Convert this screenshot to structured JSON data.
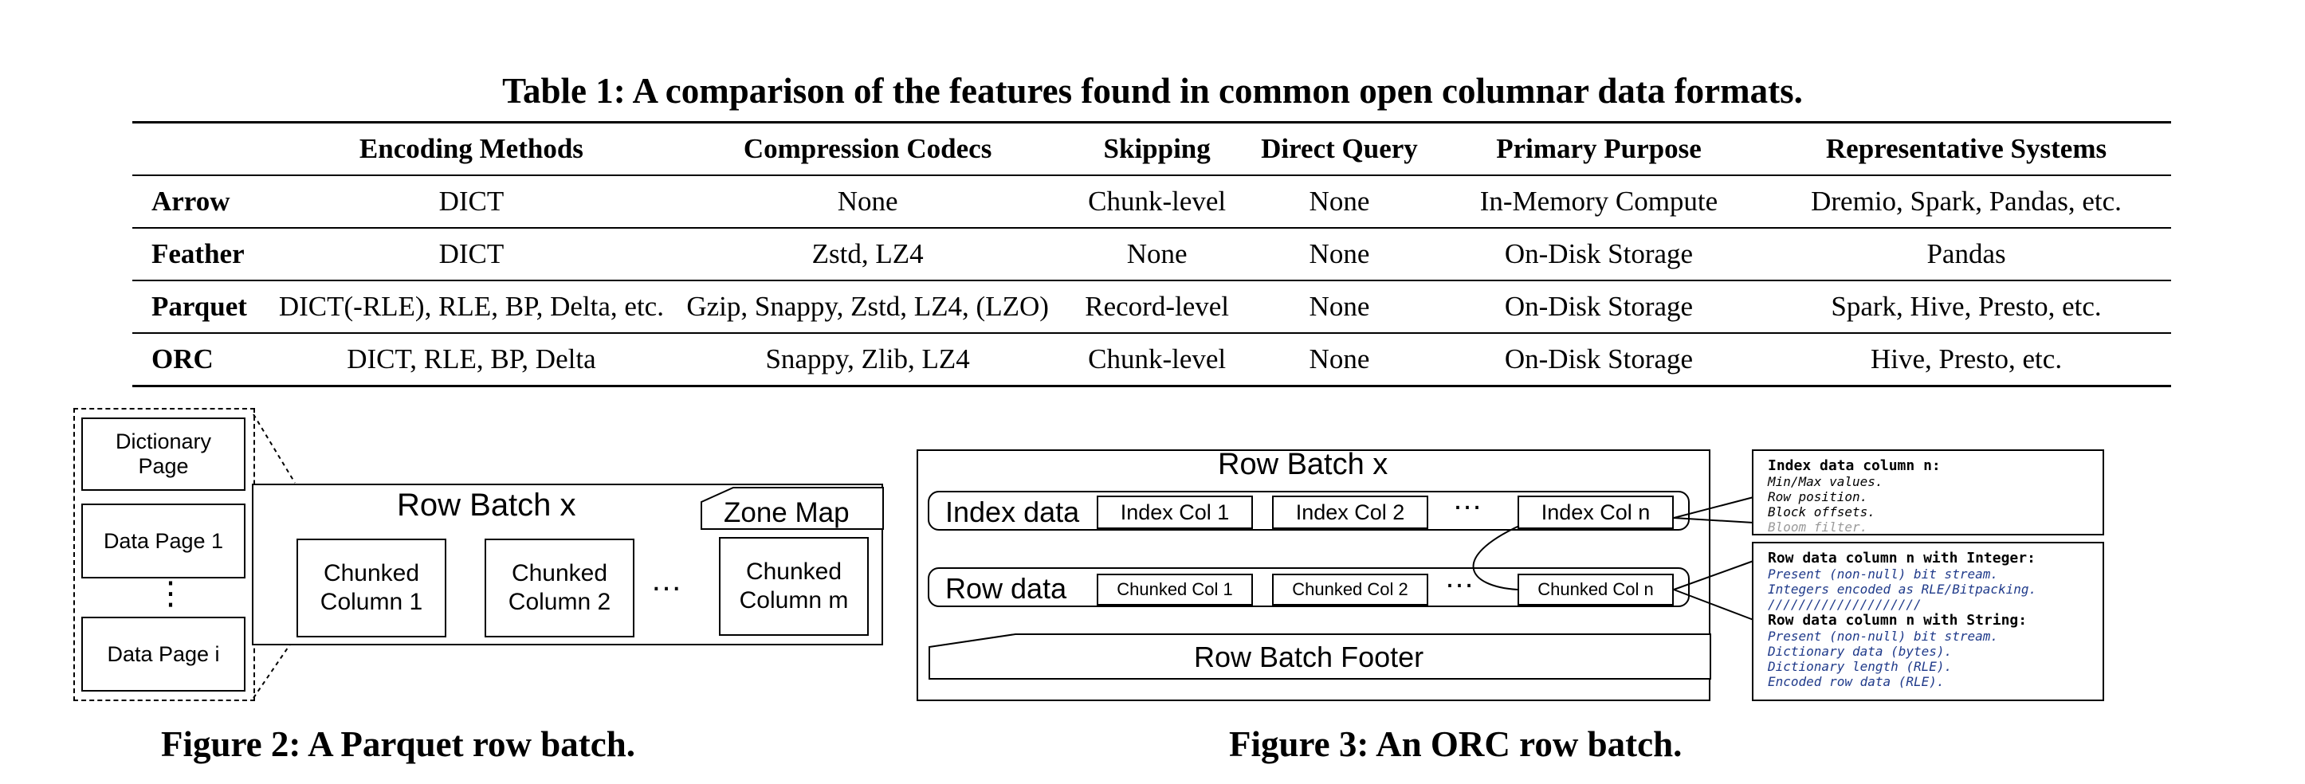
{
  "table": {
    "caption": "Table 1: A comparison of the features found in common open columnar data formats.",
    "headers": [
      "",
      "Encoding Methods",
      "Compression Codecs",
      "Skipping",
      "Direct Query",
      "Primary Purpose",
      "Representative Systems"
    ],
    "rows": [
      [
        "Arrow",
        "DICT",
        "None",
        "Chunk-level",
        "None",
        "In-Memory Compute",
        "Dremio, Spark, Pandas, etc."
      ],
      [
        "Feather",
        "DICT",
        "Zstd, LZ4",
        "None",
        "None",
        "On-Disk Storage",
        "Pandas"
      ],
      [
        "Parquet",
        "DICT(-RLE), RLE, BP, Delta, etc.",
        "Gzip, Snappy, Zstd, LZ4, (LZO)",
        "Record-level",
        "None",
        "On-Disk Storage",
        "Spark, Hive, Presto, etc."
      ],
      [
        "ORC",
        "DICT, RLE, BP, Delta",
        "Snappy, Zlib, LZ4",
        "Chunk-level",
        "None",
        "On-Disk Storage",
        "Hive, Presto, etc."
      ]
    ]
  },
  "fig2": {
    "caption": "Figure 2: A Parquet row batch.",
    "dictionary_page": "Dictionary Page",
    "data_page_1": "Data Page 1",
    "vdots": "⋮",
    "data_page_i": "Data Page i",
    "row_batch": "Row Batch x",
    "zone_map": "Zone Map",
    "col1": "Chunked Column 1",
    "col2": "Chunked Column 2",
    "ellipsis": "…",
    "colm": "Chunked Column m"
  },
  "fig3": {
    "caption": "Figure 3: An ORC row batch.",
    "row_batch": "Row Batch x",
    "index_data": "Index data",
    "index_col_1": "Index Col 1",
    "index_col_2": "Index Col 2",
    "index_col_n": "Index Col n",
    "row_data": "Row data",
    "chunked_col_1": "Chunked Col 1",
    "chunked_col_2": "Chunked Col 2",
    "chunked_col_n": "Chunked Col n",
    "ellipsis": "…",
    "footer": "Row Batch Footer",
    "note1": {
      "title": "Index data column n:",
      "lines": [
        "Min/Max values.",
        "Row position.",
        "Block offsets."
      ],
      "faded": "Bloom filter."
    },
    "note2": {
      "title1": "Row data column n with Integer:",
      "lines1": [
        "Present (non-null) bit stream.",
        "Integers encoded as RLE/Bitpacking.",
        "////////////////////"
      ],
      "title2": "Row data column n with String:",
      "lines2": [
        "Present (non-null) bit stream.",
        "Dictionary data (bytes).",
        "Dictionary length (RLE).",
        "Encoded row data (RLE)."
      ]
    }
  }
}
